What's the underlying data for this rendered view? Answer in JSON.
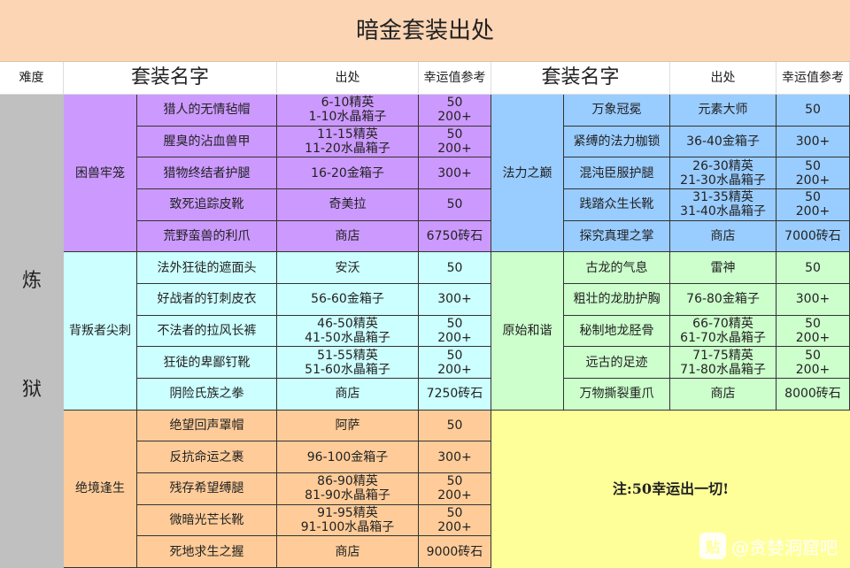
{
  "title": "暗金套装出处",
  "headers": {
    "difficulty": "难度",
    "set_name": "套装名字",
    "source": "出处",
    "luck": "幸运值参考"
  },
  "difficulty": [
    "炼",
    "狱"
  ],
  "colors": {
    "title": "#fcd5b4",
    "difficulty": "#c0c0c0",
    "note": "#ffff99"
  },
  "left_sets": [
    {
      "name": "困兽牢笼",
      "color": "#cc99ff",
      "items": [
        {
          "item": "猎人的无情毡帽",
          "source": [
            "6-10精英",
            "1-10水晶箱子"
          ],
          "luck": [
            "50",
            "200+"
          ]
        },
        {
          "item": "腥臭的沾血兽甲",
          "source": [
            "11-15精英",
            "11-20水晶箱子"
          ],
          "luck": [
            "50",
            "200+"
          ]
        },
        {
          "item": "猎物终结者护腿",
          "source": [
            "16-20金箱子"
          ],
          "luck": [
            "300+"
          ]
        },
        {
          "item": "致死追踪皮靴",
          "source": [
            "奇美拉"
          ],
          "luck": [
            "50"
          ]
        },
        {
          "item": "荒野蛮兽的利爪",
          "source": [
            "商店"
          ],
          "luck": [
            "6750砖石"
          ]
        }
      ]
    },
    {
      "name": "背叛者尖刺",
      "color": "#ccffff",
      "items": [
        {
          "item": "法外狂徒的遮面头",
          "source": [
            "安沃"
          ],
          "luck": [
            "50"
          ]
        },
        {
          "item": "好战者的钉刺皮衣",
          "source": [
            "56-60金箱子"
          ],
          "luck": [
            "300+"
          ]
        },
        {
          "item": "不法者的拉风长裤",
          "source": [
            "46-50精英",
            "41-50水晶箱子"
          ],
          "luck": [
            "50",
            "200+"
          ]
        },
        {
          "item": "狂徒的卑鄙钉靴",
          "source": [
            "51-55精英",
            "51-60水晶箱子"
          ],
          "luck": [
            "50",
            "200+"
          ]
        },
        {
          "item": "阴险氏族之拳",
          "source": [
            "商店"
          ],
          "luck": [
            "7250砖石"
          ]
        }
      ]
    },
    {
      "name": "绝境逢生",
      "color": "#ffcc99",
      "items": [
        {
          "item": "绝望回声罩帽",
          "source": [
            "阿萨"
          ],
          "luck": [
            "50"
          ]
        },
        {
          "item": "反抗命运之裹",
          "source": [
            "96-100金箱子"
          ],
          "luck": [
            "300+"
          ]
        },
        {
          "item": "残存希望缚腿",
          "source": [
            "86-90精英",
            "81-90水晶箱子"
          ],
          "luck": [
            "50",
            "200+"
          ]
        },
        {
          "item": "微暗光芒长靴",
          "source": [
            "91-95精英",
            "91-100水晶箱子"
          ],
          "luck": [
            "50",
            "200+"
          ]
        },
        {
          "item": "死地求生之握",
          "source": [
            "商店"
          ],
          "luck": [
            "9000砖石"
          ]
        }
      ]
    }
  ],
  "right_sets": [
    {
      "name": "法力之巅",
      "color": "#99ccff",
      "items": [
        {
          "item": "万象冠冕",
          "source": [
            "元素大师"
          ],
          "luck": [
            "50"
          ]
        },
        {
          "item": "紧缚的法力枷锁",
          "source": [
            "36-40金箱子"
          ],
          "luck": [
            "300+"
          ]
        },
        {
          "item": "混沌臣服护腿",
          "source": [
            "26-30精英",
            "21-30水晶箱子"
          ],
          "luck": [
            "50",
            "200+"
          ]
        },
        {
          "item": "践踏众生长靴",
          "source": [
            "31-35精英",
            "31-40水晶箱子"
          ],
          "luck": [
            "50",
            "200+"
          ]
        },
        {
          "item": "探究真理之掌",
          "source": [
            "商店"
          ],
          "luck": [
            "7000砖石"
          ]
        }
      ]
    },
    {
      "name": "原始和谐",
      "color": "#ccffcc",
      "items": [
        {
          "item": "古龙的气息",
          "source": [
            "雷神"
          ],
          "luck": [
            "50"
          ]
        },
        {
          "item": "粗壮的龙肋护胸",
          "source": [
            "76-80金箱子"
          ],
          "luck": [
            "300+"
          ]
        },
        {
          "item": "秘制地龙胫骨",
          "source": [
            "66-70精英",
            "61-70水晶箱子"
          ],
          "luck": [
            "50",
            "200+"
          ]
        },
        {
          "item": "远古的足迹",
          "source": [
            "71-75精英",
            "71-80水晶箱子"
          ],
          "luck": [
            "50",
            "200+"
          ]
        },
        {
          "item": "万物撕裂重爪",
          "source": [
            "商店"
          ],
          "luck": [
            "8000砖石"
          ]
        }
      ]
    }
  ],
  "note": "注:50幸运出一切!",
  "watermark": {
    "logo": "贴",
    "text": "@贪婪洞窟吧"
  }
}
